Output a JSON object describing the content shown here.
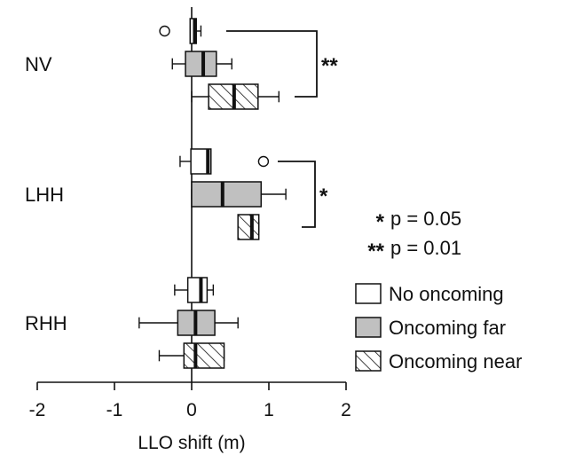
{
  "chart_data": {
    "type": "boxplot",
    "orientation": "horizontal",
    "xlabel": "LLO shift (m)",
    "xlim": [
      -2,
      2
    ],
    "xticks": [
      -2,
      -1,
      0,
      1,
      2
    ],
    "xtick_labels": [
      "-2",
      "-1",
      "0",
      "1",
      "2"
    ],
    "groups": [
      "NV",
      "LHH",
      "RHH"
    ],
    "series": [
      {
        "name": "No oncoming",
        "fill": "#ffffff",
        "pattern": "none"
      },
      {
        "name": "Oncoming far",
        "fill": "#c0c0c0",
        "pattern": "none"
      },
      {
        "name": "Oncoming near",
        "fill": "#ffffff",
        "pattern": "hatch"
      }
    ],
    "boxes": [
      {
        "group": "NV",
        "series": "No oncoming",
        "whisker_low": -0.02,
        "q1": -0.02,
        "median": 0.04,
        "q3": 0.06,
        "whisker_high": 0.12,
        "outliers": [
          -0.35
        ]
      },
      {
        "group": "NV",
        "series": "Oncoming far",
        "whisker_low": -0.25,
        "q1": -0.08,
        "median": 0.15,
        "q3": 0.32,
        "whisker_high": 0.52,
        "outliers": []
      },
      {
        "group": "NV",
        "series": "Oncoming near",
        "whisker_low": 0.0,
        "q1": 0.22,
        "median": 0.55,
        "q3": 0.86,
        "whisker_high": 1.13,
        "outliers": []
      },
      {
        "group": "LHH",
        "series": "No oncoming",
        "whisker_low": -0.15,
        "q1": -0.01,
        "median": 0.21,
        "q3": 0.25,
        "whisker_high": 0.25,
        "outliers": [
          0.93
        ]
      },
      {
        "group": "LHH",
        "series": "Oncoming far",
        "whisker_low": 0.0,
        "q1": 0.0,
        "median": 0.4,
        "q3": 0.9,
        "whisker_high": 1.22,
        "outliers": []
      },
      {
        "group": "LHH",
        "series": "Oncoming near",
        "whisker_low": 0.6,
        "q1": 0.6,
        "median": 0.78,
        "q3": 0.87,
        "whisker_high": 0.87,
        "outliers": []
      },
      {
        "group": "RHH",
        "series": "No oncoming",
        "whisker_low": -0.22,
        "q1": -0.05,
        "median": 0.12,
        "q3": 0.2,
        "whisker_high": 0.28,
        "outliers": []
      },
      {
        "group": "RHH",
        "series": "Oncoming far",
        "whisker_low": -0.68,
        "q1": -0.18,
        "median": 0.05,
        "q3": 0.3,
        "whisker_high": 0.6,
        "outliers": []
      },
      {
        "group": "RHH",
        "series": "Oncoming near",
        "whisker_low": -0.42,
        "q1": -0.1,
        "median": 0.05,
        "q3": 0.42,
        "whisker_high": 0.42,
        "outliers": []
      }
    ],
    "significance": [
      {
        "group": "NV",
        "label": "**"
      },
      {
        "group": "LHH",
        "label": "*"
      }
    ],
    "significance_legend": [
      {
        "stars": "*",
        "text": "p = 0.05"
      },
      {
        "stars": "**",
        "text": "p = 0.01"
      }
    ],
    "legend_position": "right"
  }
}
